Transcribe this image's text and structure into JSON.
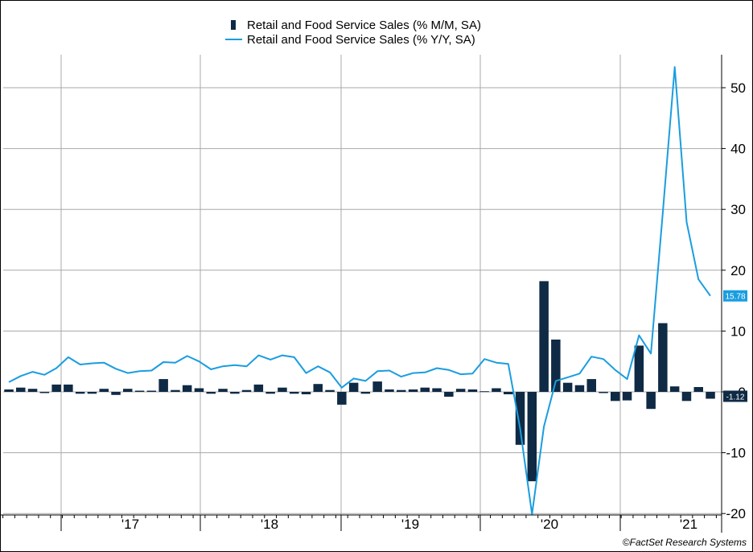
{
  "chart_data": {
    "type": "bar+line",
    "legend": [
      {
        "label": "Retail and Food Service Sales (% M/M, SA)",
        "color": "#0f2a44",
        "kind": "bar"
      },
      {
        "label": "Retail and Food Service Sales (% Y/Y, SA)",
        "color": "#1a9de0",
        "kind": "line"
      }
    ],
    "x_start": "2016-06",
    "x_end": "2021-03",
    "x_ticks": [
      "'17",
      "'18",
      "'19",
      "'20",
      "'21"
    ],
    "y_ticks": [
      "50",
      "40",
      "30",
      "20",
      "10",
      "0",
      "-10",
      "-20"
    ],
    "ylim": [
      -20,
      55
    ],
    "grid": true,
    "mom_series": [
      {
        "x": "2016-06",
        "y": 0.4
      },
      {
        "x": "2016-07",
        "y": 0.7
      },
      {
        "x": "2016-08",
        "y": 0.5
      },
      {
        "x": "2016-09",
        "y": -0.2
      },
      {
        "x": "2016-10",
        "y": 1.2
      },
      {
        "x": "2016-11",
        "y": 1.2
      },
      {
        "x": "2016-12",
        "y": -0.3
      },
      {
        "x": "2017-01",
        "y": -0.3
      },
      {
        "x": "2017-02",
        "y": 0.5
      },
      {
        "x": "2017-03",
        "y": -0.5
      },
      {
        "x": "2017-04",
        "y": 0.5
      },
      {
        "x": "2017-05",
        "y": 0.2
      },
      {
        "x": "2017-06",
        "y": 0.2
      },
      {
        "x": "2017-07",
        "y": 2.1
      },
      {
        "x": "2017-08",
        "y": 0.3
      },
      {
        "x": "2017-09",
        "y": 1.1
      },
      {
        "x": "2017-10",
        "y": 0.6
      },
      {
        "x": "2017-11",
        "y": -0.3
      },
      {
        "x": "2017-12",
        "y": 0.5
      },
      {
        "x": "2018-01",
        "y": -0.3
      },
      {
        "x": "2018-02",
        "y": 0.3
      },
      {
        "x": "2018-03",
        "y": 1.2
      },
      {
        "x": "2018-04",
        "y": -0.3
      },
      {
        "x": "2018-05",
        "y": 0.7
      },
      {
        "x": "2018-06",
        "y": -0.3
      },
      {
        "x": "2018-07",
        "y": -0.4
      },
      {
        "x": "2018-08",
        "y": 1.3
      },
      {
        "x": "2018-09",
        "y": 0.3
      },
      {
        "x": "2018-10",
        "y": -2.1
      },
      {
        "x": "2018-11",
        "y": 1.5
      },
      {
        "x": "2018-12",
        "y": -0.3
      },
      {
        "x": "2019-01",
        "y": 1.7
      },
      {
        "x": "2019-02",
        "y": 0.4
      },
      {
        "x": "2019-03",
        "y": 0.3
      },
      {
        "x": "2019-04",
        "y": 0.4
      },
      {
        "x": "2019-05",
        "y": 0.7
      },
      {
        "x": "2019-06",
        "y": 0.6
      },
      {
        "x": "2019-07",
        "y": -0.8
      },
      {
        "x": "2019-08",
        "y": 0.5
      },
      {
        "x": "2019-09",
        "y": 0.4
      },
      {
        "x": "2019-10",
        "y": 0.1
      },
      {
        "x": "2019-11",
        "y": 0.6
      },
      {
        "x": "2019-12",
        "y": -0.4
      },
      {
        "x": "2020-01",
        "y": -8.7
      },
      {
        "x": "2020-02",
        "y": -14.7
      },
      {
        "x": "2020-03",
        "y": 18.2
      },
      {
        "x": "2020-04",
        "y": 8.6
      },
      {
        "x": "2020-05",
        "y": 1.5
      },
      {
        "x": "2020-06",
        "y": 1.1
      },
      {
        "x": "2020-07",
        "y": 2.1
      },
      {
        "x": "2020-08",
        "y": -0.2
      },
      {
        "x": "2020-09",
        "y": -1.5
      },
      {
        "x": "2020-10",
        "y": -1.4
      },
      {
        "x": "2020-11",
        "y": 7.6
      },
      {
        "x": "2020-12",
        "y": -2.8
      },
      {
        "x": "2021-01",
        "y": 11.3
      },
      {
        "x": "2021-02",
        "y": 0.9
      },
      {
        "x": "2021-03",
        "y": -1.5
      },
      {
        "x": "2021-04",
        "y": 0.8
      },
      {
        "x": "2021-05",
        "y": -1.12
      }
    ],
    "yoy_series": [
      {
        "x": "2016-06",
        "y": 1.6
      },
      {
        "x": "2016-07",
        "y": 2.6
      },
      {
        "x": "2016-08",
        "y": 3.3
      },
      {
        "x": "2016-09",
        "y": 2.8
      },
      {
        "x": "2016-10",
        "y": 3.9
      },
      {
        "x": "2016-11",
        "y": 5.7
      },
      {
        "x": "2016-12",
        "y": 4.5
      },
      {
        "x": "2017-01",
        "y": 4.7
      },
      {
        "x": "2017-02",
        "y": 4.8
      },
      {
        "x": "2017-03",
        "y": 3.8
      },
      {
        "x": "2017-04",
        "y": 3.1
      },
      {
        "x": "2017-05",
        "y": 3.4
      },
      {
        "x": "2017-06",
        "y": 3.5
      },
      {
        "x": "2017-07",
        "y": 4.9
      },
      {
        "x": "2017-08",
        "y": 4.8
      },
      {
        "x": "2017-09",
        "y": 5.9
      },
      {
        "x": "2017-10",
        "y": 5.0
      },
      {
        "x": "2017-11",
        "y": 3.7
      },
      {
        "x": "2017-12",
        "y": 4.2
      },
      {
        "x": "2018-01",
        "y": 4.4
      },
      {
        "x": "2018-02",
        "y": 4.2
      },
      {
        "x": "2018-03",
        "y": 6.0
      },
      {
        "x": "2018-04",
        "y": 5.3
      },
      {
        "x": "2018-05",
        "y": 6.0
      },
      {
        "x": "2018-06",
        "y": 5.7
      },
      {
        "x": "2018-07",
        "y": 3.1
      },
      {
        "x": "2018-08",
        "y": 4.2
      },
      {
        "x": "2018-09",
        "y": 3.2
      },
      {
        "x": "2018-10",
        "y": 0.7
      },
      {
        "x": "2018-11",
        "y": 2.2
      },
      {
        "x": "2018-12",
        "y": 1.8
      },
      {
        "x": "2019-01",
        "y": 3.4
      },
      {
        "x": "2019-02",
        "y": 3.5
      },
      {
        "x": "2019-03",
        "y": 2.5
      },
      {
        "x": "2019-04",
        "y": 3.1
      },
      {
        "x": "2019-05",
        "y": 3.2
      },
      {
        "x": "2019-06",
        "y": 3.9
      },
      {
        "x": "2019-07",
        "y": 3.6
      },
      {
        "x": "2019-08",
        "y": 2.9
      },
      {
        "x": "2019-09",
        "y": 3.0
      },
      {
        "x": "2019-10",
        "y": 5.4
      },
      {
        "x": "2019-11",
        "y": 4.8
      },
      {
        "x": "2019-12",
        "y": 4.6
      },
      {
        "x": "2020-01",
        "y": -6.0
      },
      {
        "x": "2020-02",
        "y": -20.1
      },
      {
        "x": "2020-03",
        "y": -5.7
      },
      {
        "x": "2020-04",
        "y": 1.8
      },
      {
        "x": "2020-05",
        "y": 2.4
      },
      {
        "x": "2020-06",
        "y": 3.0
      },
      {
        "x": "2020-07",
        "y": 5.8
      },
      {
        "x": "2020-08",
        "y": 5.4
      },
      {
        "x": "2020-09",
        "y": 3.6
      },
      {
        "x": "2020-10",
        "y": 2.1
      },
      {
        "x": "2020-11",
        "y": 9.3
      },
      {
        "x": "2020-12",
        "y": 6.3
      },
      {
        "x": "2021-01",
        "y": 29.5
      },
      {
        "x": "2021-02",
        "y": 53.4
      },
      {
        "x": "2021-03",
        "y": 27.9
      },
      {
        "x": "2021-04",
        "y": 18.5
      },
      {
        "x": "2021-05",
        "y": 15.78
      }
    ],
    "last_value_labels": {
      "yoy": "15.78",
      "mom": "-1.12"
    }
  },
  "credit": "©FactSet Research Systems"
}
